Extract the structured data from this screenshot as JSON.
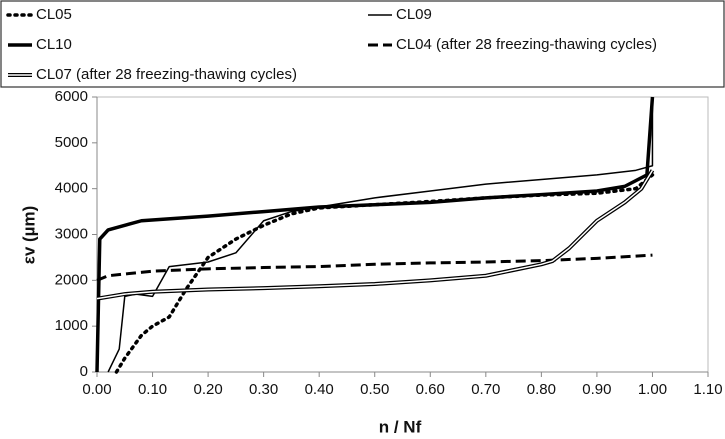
{
  "chart_data": {
    "type": "line",
    "xlabel": "n / Nf",
    "ylabel": "εv (µm)",
    "xlim": [
      0,
      1.1
    ],
    "ylim": [
      0,
      6000
    ],
    "xticks": [
      {
        "value": 0,
        "label": "0.00"
      },
      {
        "value": 0.1,
        "label": "0.10"
      },
      {
        "value": 0.2,
        "label": "0.20"
      },
      {
        "value": 0.3,
        "label": "0.30"
      },
      {
        "value": 0.4,
        "label": "0.40"
      },
      {
        "value": 0.5,
        "label": "0.50"
      },
      {
        "value": 0.6,
        "label": "0.60"
      },
      {
        "value": 0.7,
        "label": "0.70"
      },
      {
        "value": 0.8,
        "label": "0.80"
      },
      {
        "value": 0.9,
        "label": "0.90"
      },
      {
        "value": 1.0,
        "label": "1.00"
      },
      {
        "value": 1.1,
        "label": "1.10"
      }
    ],
    "yticks": [
      0,
      1000,
      2000,
      3000,
      4000,
      5000,
      6000
    ],
    "grid": false,
    "series": [
      {
        "name": "CL05",
        "color": "#000000",
        "line_style": "dotted",
        "line_width": 3.5,
        "x": [
          0.035,
          0.05,
          0.08,
          0.1,
          0.13,
          0.16,
          0.2,
          0.25,
          0.3,
          0.35,
          0.4,
          0.5,
          0.6,
          0.7,
          0.8,
          0.9,
          0.97,
          1.0
        ],
        "values": [
          0,
          300,
          800,
          1000,
          1200,
          1800,
          2500,
          2900,
          3200,
          3450,
          3580,
          3650,
          3720,
          3800,
          3860,
          3900,
          4000,
          4300
        ]
      },
      {
        "name": "CL09",
        "color": "#000000",
        "line_style": "solid",
        "line_width": 1.5,
        "x": [
          0.02,
          0.04,
          0.05,
          0.07,
          0.1,
          0.13,
          0.2,
          0.25,
          0.3,
          0.35,
          0.4,
          0.5,
          0.6,
          0.7,
          0.8,
          0.9,
          0.97,
          1.0,
          1.0
        ],
        "values": [
          0,
          500,
          1650,
          1700,
          1650,
          2300,
          2400,
          2600,
          3300,
          3500,
          3600,
          3800,
          3950,
          4100,
          4200,
          4300,
          4400,
          4500,
          6000
        ]
      },
      {
        "name": "CL10",
        "color": "#000000",
        "line_style": "solid",
        "line_width": 3.5,
        "x": [
          0,
          0.005,
          0.02,
          0.08,
          0.2,
          0.3,
          0.4,
          0.5,
          0.6,
          0.7,
          0.8,
          0.9,
          0.95,
          0.99,
          1.0
        ],
        "values": [
          0,
          2900,
          3100,
          3300,
          3400,
          3500,
          3600,
          3650,
          3700,
          3800,
          3870,
          3950,
          4050,
          4300,
          6000
        ]
      },
      {
        "name": "CL04 (after 28 freezing-thawing cycles)",
        "color": "#000000",
        "line_style": "dashed",
        "line_width": 3,
        "x": [
          0,
          0.02,
          0.1,
          0.2,
          0.3,
          0.4,
          0.5,
          0.6,
          0.7,
          0.8,
          0.9,
          1.0
        ],
        "values": [
          2000,
          2100,
          2200,
          2250,
          2280,
          2300,
          2350,
          2380,
          2400,
          2430,
          2480,
          2550
        ]
      },
      {
        "name": "CL07 (after 28 freezing-thawing cycles)",
        "color": "#000000",
        "line_style": "double",
        "line_width": 4,
        "x": [
          0,
          0.05,
          0.1,
          0.2,
          0.3,
          0.4,
          0.5,
          0.6,
          0.7,
          0.8,
          0.82,
          0.85,
          0.9,
          0.95,
          0.98,
          1.0
        ],
        "values": [
          1600,
          1700,
          1750,
          1800,
          1830,
          1870,
          1920,
          2000,
          2100,
          2350,
          2420,
          2700,
          3300,
          3700,
          4000,
          4400
        ]
      }
    ]
  }
}
